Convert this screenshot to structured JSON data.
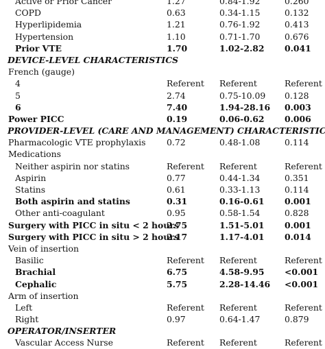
{
  "rows": [
    {
      "label": "Active or Prior Cancer",
      "or": "1.27",
      "ci": "0.84-1.92",
      "p": "0.260",
      "indent": 1
    },
    {
      "label": "COPD",
      "or": "0.63",
      "ci": "0.34-1.15",
      "p": "0.132",
      "indent": 1
    },
    {
      "label": "Hyperlipidemia",
      "or": "1.21",
      "ci": "0.76-1.92",
      "p": "0.413",
      "indent": 1
    },
    {
      "label": "Hypertension",
      "or": "1.10",
      "ci": "0.71-1.70",
      "p": "0.676",
      "indent": 1
    },
    {
      "label": "Prior VTE",
      "or": "1.70",
      "ci": "1.02-2.82",
      "p": "0.041",
      "indent": 1,
      "bold": true
    },
    {
      "label": "DEVICE-LEVEL CHARACTERISTICS",
      "section": true
    },
    {
      "label": "French (gauge)",
      "indent": 0
    },
    {
      "label": "4",
      "or": "Referent",
      "ci": "Referent",
      "p": "Referent",
      "indent": 1
    },
    {
      "label": "5",
      "or": "2.74",
      "ci": "0.75-10.09",
      "p": "0.128",
      "indent": 1
    },
    {
      "label": "6",
      "or": "7.40",
      "ci": "1.94-28.16",
      "p": "0.003",
      "indent": 1,
      "bold": true
    },
    {
      "label": "Power PICC",
      "or": "0.19",
      "ci": "0.06-0.62",
      "p": "0.006",
      "indent": 0,
      "bold": true
    },
    {
      "label": "PROVIDER-LEVEL (CARE AND MANAGEMENT) CHARACTERISTICS",
      "section": true
    },
    {
      "label": "Pharmacologic VTE prophylaxis",
      "or": "0.72",
      "ci": "0.48-1.08",
      "p": "0.114",
      "indent": 0
    },
    {
      "label": "Medications",
      "indent": 0
    },
    {
      "label": "Neither aspirin nor statins",
      "or": "Referent",
      "ci": "Referent",
      "p": "Referent",
      "indent": 1
    },
    {
      "label": "Aspirin",
      "or": "0.77",
      "ci": "0.44-1.34",
      "p": "0.351",
      "indent": 1
    },
    {
      "label": "Statins",
      "or": "0.61",
      "ci": "0.33-1.13",
      "p": "0.114",
      "indent": 1
    },
    {
      "label": "Both aspirin and statins",
      "or": "0.31",
      "ci": "0.16-0.61",
      "p": "0.001",
      "indent": 1,
      "bold": true
    },
    {
      "label": "Other anti-coagulant",
      "or": "0.95",
      "ci": "0.58-1.54",
      "p": "0.828",
      "indent": 1
    },
    {
      "label": "Surgery with PICC in situ < 2 hours",
      "or": "2.75",
      "ci": "1.51-5.01",
      "p": "0.001",
      "indent": 0,
      "bold": true
    },
    {
      "label": "Surgery with PICC in situ > 2 hours",
      "or": "2.17",
      "ci": "1.17-4.01",
      "p": "0.014",
      "indent": 0,
      "bold": true
    },
    {
      "label": "Vein of insertion",
      "indent": 0
    },
    {
      "label": "Basilic",
      "or": "Referent",
      "ci": "Referent",
      "p": "Referent",
      "indent": 1
    },
    {
      "label": "Brachial",
      "or": "6.75",
      "ci": "4.58-9.95",
      "p": "<0.001",
      "indent": 1,
      "bold": true
    },
    {
      "label": "Cephalic",
      "or": "5.75",
      "ci": "2.28-14.46",
      "p": "<0.001",
      "indent": 1,
      "bold": true
    },
    {
      "label": "Arm of insertion",
      "indent": 0
    },
    {
      "label": "Left",
      "or": "Referent",
      "ci": "Referent",
      "p": "Referent",
      "indent": 1
    },
    {
      "label": "Right",
      "or": "0.97",
      "ci": "0.64-1.47",
      "p": "0.879",
      "indent": 1
    },
    {
      "label": "OPERATOR/INSERTER",
      "section": true
    },
    {
      "label": "Vascular Access Nurse",
      "or": "Referent",
      "ci": "Referent",
      "p": "Referent",
      "indent": 1
    }
  ]
}
